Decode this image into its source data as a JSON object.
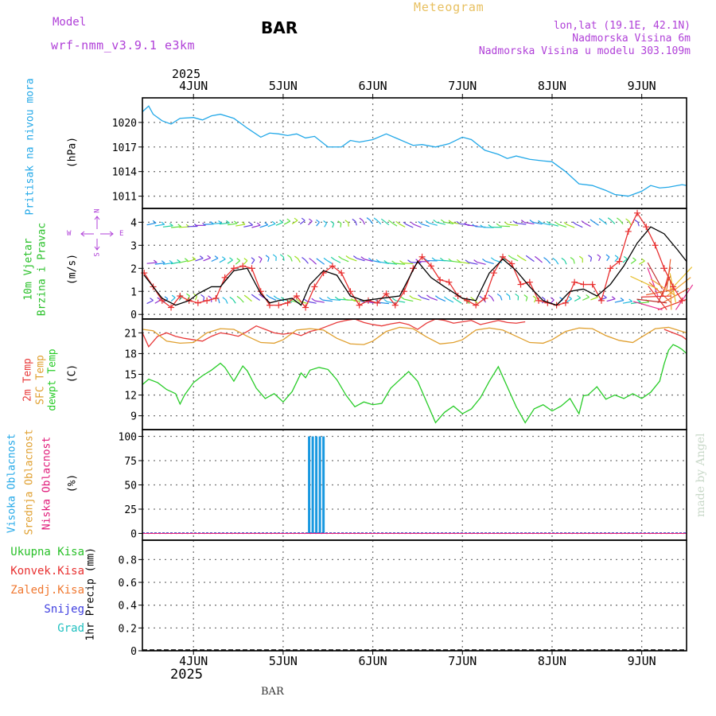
{
  "header": {
    "model_label": "Model",
    "model_name": "wrf-nmm_v3.9.1 e3km",
    "station": "BAR",
    "title": "Meteogram",
    "lonlat": "lon,lat (19.1E, 42.1N)",
    "elevation": "Nadmorska Visina 6m",
    "model_elevation": "Nadmorska Visina u modelu 303.109m",
    "footer_station": "BAR",
    "credit": "made by Angel",
    "colors": {
      "model": "#b040d8",
      "title": "#e8c060"
    }
  },
  "time_axis": {
    "year": "2025",
    "ticks": [
      {
        "label": "4JUN",
        "day": 0
      },
      {
        "label": "5JUN",
        "day": 1
      },
      {
        "label": "6JUN",
        "day": 2
      },
      {
        "label": "7JUN",
        "day": 3
      },
      {
        "label": "8JUN",
        "day": 4
      },
      {
        "label": "9JUN",
        "day": 5
      }
    ],
    "range_days": [
      -0.57,
      5.5
    ]
  },
  "chart_data": [
    {
      "type": "line",
      "panel": "pressure",
      "ylabel": "Pritisak na nivou mora",
      "unit": "(hPa)",
      "ylim": [
        1009.5,
        1023.0
      ],
      "yticks": [
        1011,
        1014,
        1017,
        1020
      ],
      "series": [
        {
          "name": "MSLP",
          "color": "#22a8e8",
          "x": [
            -0.57,
            -0.5,
            -0.45,
            -0.35,
            -0.25,
            -0.15,
            0,
            0.1,
            0.2,
            0.3,
            0.45,
            0.6,
            0.75,
            0.85,
            0.95,
            1.05,
            1.15,
            1.25,
            1.35,
            1.5,
            1.65,
            1.75,
            1.85,
            2.0,
            2.15,
            2.3,
            2.45,
            2.55,
            2.7,
            2.85,
            3.0,
            3.1,
            3.25,
            3.4,
            3.5,
            3.6,
            3.75,
            3.9,
            4.0,
            4.15,
            4.3,
            4.45,
            4.6,
            4.7,
            4.85,
            5.0,
            5.1,
            5.2,
            5.3,
            5.45,
            5.5
          ],
          "values": [
            1021.3,
            1022.0,
            1021.0,
            1020.2,
            1019.8,
            1020.5,
            1020.6,
            1020.3,
            1020.8,
            1021.0,
            1020.5,
            1019.3,
            1018.2,
            1018.7,
            1018.6,
            1018.4,
            1018.6,
            1018.1,
            1018.3,
            1017.0,
            1017.0,
            1017.8,
            1017.6,
            1017.9,
            1018.6,
            1017.9,
            1017.2,
            1017.3,
            1017.0,
            1017.4,
            1018.2,
            1017.9,
            1016.6,
            1016.1,
            1015.6,
            1015.9,
            1015.5,
            1015.3,
            1015.2,
            1014.0,
            1012.5,
            1012.3,
            1011.7,
            1011.2,
            1011.0,
            1011.6,
            1012.3,
            1012.0,
            1012.1,
            1012.4,
            1012.3
          ]
        }
      ]
    },
    {
      "type": "line",
      "panel": "wind",
      "ylabel": "10m Vjetar Brzina i Pravac",
      "unit": "(m/s)",
      "compass": {
        "n": "N",
        "s": "S",
        "e": "E",
        "w": "W"
      },
      "ylim": [
        -0.2,
        4.6
      ],
      "yticks": [
        0,
        1,
        2,
        3,
        4
      ],
      "series": [
        {
          "name": "Brzina",
          "color": "#e83030",
          "x": [
            -0.55,
            -0.45,
            -0.35,
            -0.25,
            -0.15,
            -0.05,
            0.05,
            0.15,
            0.25,
            0.35,
            0.45,
            0.55,
            0.65,
            0.75,
            0.85,
            0.95,
            1.05,
            1.15,
            1.25,
            1.35,
            1.45,
            1.55,
            1.65,
            1.75,
            1.85,
            1.95,
            2.05,
            2.15,
            2.25,
            2.35,
            2.45,
            2.55,
            2.65,
            2.75,
            2.85,
            2.95,
            3.05,
            3.15,
            3.25,
            3.35,
            3.45,
            3.55,
            3.65,
            3.75,
            3.85,
            3.95,
            4.05,
            4.15,
            4.25,
            4.35,
            4.45,
            4.55,
            4.65,
            4.75,
            4.85,
            4.95,
            5.05,
            5.15,
            5.25,
            5.35,
            5.45
          ],
          "values": [
            1.8,
            1.2,
            0.6,
            0.3,
            0.8,
            0.6,
            0.5,
            0.6,
            0.7,
            1.6,
            2.0,
            2.1,
            2.0,
            1.0,
            0.4,
            0.4,
            0.5,
            0.8,
            0.3,
            1.2,
            1.8,
            2.1,
            1.8,
            1.0,
            0.4,
            0.6,
            0.5,
            0.9,
            0.4,
            1.0,
            2.0,
            2.5,
            2.1,
            1.5,
            1.4,
            0.8,
            0.6,
            0.4,
            0.7,
            1.8,
            2.5,
            2.2,
            1.3,
            1.4,
            0.6,
            0.5,
            0.4,
            0.5,
            1.4,
            1.3,
            1.3,
            0.6,
            2.0,
            2.3,
            3.6,
            4.4,
            3.8,
            3.0,
            2.0,
            1.2,
            0.6
          ]
        },
        {
          "name": "Model",
          "color": "#000000",
          "x": [
            -0.55,
            -0.35,
            -0.2,
            -0.05,
            0.05,
            0.2,
            0.3,
            0.45,
            0.6,
            0.75,
            0.85,
            0.95,
            1.1,
            1.2,
            1.3,
            1.45,
            1.6,
            1.75,
            1.9,
            2.1,
            2.3,
            2.5,
            2.65,
            2.8,
            3.0,
            3.15,
            3.3,
            3.45,
            3.6,
            3.75,
            3.9,
            4.05,
            4.2,
            4.35,
            4.5,
            4.65,
            4.8,
            4.95,
            5.1,
            5.25,
            5.4,
            5.5
          ],
          "values": [
            1.7,
            0.7,
            0.4,
            0.6,
            0.9,
            1.2,
            1.2,
            1.9,
            2.0,
            0.9,
            0.5,
            0.6,
            0.7,
            0.4,
            1.3,
            1.9,
            1.7,
            0.8,
            0.6,
            0.7,
            0.8,
            2.3,
            1.6,
            1.2,
            0.7,
            0.6,
            1.8,
            2.4,
            1.9,
            1.2,
            0.6,
            0.4,
            1.0,
            1.1,
            0.8,
            1.3,
            2.1,
            3.1,
            3.8,
            3.5,
            2.8,
            2.3
          ]
        }
      ],
      "arrow_rows": [
        3.85,
        2.25,
        0.55
      ]
    },
    {
      "type": "line",
      "panel": "temperature",
      "ylabel": [
        "2m Temp",
        "SFC Temp",
        "dewpt Temp"
      ],
      "unit": "(C)",
      "ylim": [
        7.0,
        23.0
      ],
      "yticks": [
        9,
        12,
        15,
        18,
        21
      ],
      "series": [
        {
          "name": "2m Temp",
          "color": "#e83a3a",
          "x": [
            -0.57,
            -0.5,
            -0.4,
            -0.3,
            -0.2,
            -0.1,
            0,
            0.1,
            0.2,
            0.3,
            0.4,
            0.5,
            0.6,
            0.7,
            0.8,
            0.9,
            1.0,
            1.1,
            1.2,
            1.3,
            1.4,
            1.5,
            1.6,
            1.7,
            1.8,
            1.9,
            2.0,
            2.1,
            2.2,
            2.3,
            2.4,
            2.5,
            2.6,
            2.7,
            2.8,
            2.9,
            3.0,
            3.1,
            3.2,
            3.3,
            3.4,
            3.5,
            3.6,
            3.7
          ],
          "values": [
            21.0,
            19.0,
            20.5,
            21.0,
            20.5,
            20.2,
            20.0,
            19.8,
            20.5,
            21.0,
            20.8,
            20.5,
            21.2,
            22.0,
            21.5,
            21.0,
            20.8,
            21.0,
            20.6,
            21.2,
            21.5,
            22.0,
            22.5,
            22.8,
            23.0,
            22.5,
            22.2,
            22.0,
            22.3,
            22.5,
            22.2,
            21.5,
            22.4,
            23.0,
            22.8,
            22.4,
            22.6,
            22.8,
            22.2,
            22.5,
            22.8,
            22.5,
            22.4,
            22.6
          ]
        },
        {
          "name": "2m Temp tail",
          "color": "#e83a3a",
          "x": [
            5.25,
            5.35,
            5.45,
            5.5
          ],
          "values": [
            21.5,
            21.0,
            20.5,
            20.0
          ]
        },
        {
          "name": "SFC Temp",
          "color": "#e0a030",
          "x": [
            -0.57,
            -0.45,
            -0.3,
            -0.15,
            0,
            0.15,
            0.3,
            0.45,
            0.6,
            0.75,
            0.9,
            1.0,
            1.15,
            1.3,
            1.45,
            1.6,
            1.75,
            1.9,
            2.0,
            2.15,
            2.3,
            2.45,
            2.6,
            2.75,
            2.9,
            3.0,
            3.15,
            3.3,
            3.45,
            3.6,
            3.75,
            3.9,
            4.0,
            4.15,
            4.3,
            4.45,
            4.6,
            4.75,
            4.9,
            5.0,
            5.15,
            5.3,
            5.45,
            5.5
          ],
          "values": [
            21.5,
            21.3,
            19.8,
            19.5,
            19.6,
            21.0,
            21.6,
            21.5,
            20.5,
            19.6,
            19.5,
            20.0,
            21.4,
            21.6,
            21.4,
            20.2,
            19.4,
            19.3,
            19.8,
            21.2,
            21.8,
            21.6,
            20.4,
            19.4,
            19.6,
            20.0,
            21.4,
            21.7,
            21.4,
            20.5,
            19.6,
            19.5,
            20.0,
            21.2,
            21.7,
            21.6,
            20.6,
            19.9,
            19.6,
            20.4,
            21.6,
            21.8,
            21.2,
            21.0
          ]
        },
        {
          "name": "dewpt Temp",
          "color": "#28cc28",
          "x": [
            -0.57,
            -0.5,
            -0.4,
            -0.3,
            -0.2,
            -0.15,
            -0.1,
            0,
            0.1,
            0.2,
            0.3,
            0.35,
            0.45,
            0.55,
            0.6,
            0.7,
            0.8,
            0.9,
            1.0,
            1.1,
            1.2,
            1.25,
            1.3,
            1.4,
            1.5,
            1.6,
            1.7,
            1.8,
            1.9,
            2.0,
            2.1,
            2.2,
            2.3,
            2.4,
            2.5,
            2.6,
            2.7,
            2.8,
            2.9,
            3.0,
            3.1,
            3.2,
            3.3,
            3.4,
            3.5,
            3.6,
            3.7,
            3.8,
            3.9,
            4.0,
            4.1,
            4.2,
            4.3,
            4.35,
            4.4,
            4.5,
            4.6,
            4.7,
            4.8,
            4.9,
            5.0,
            5.1,
            5.2,
            5.25,
            5.3,
            5.35,
            5.4,
            5.45,
            5.5
          ],
          "values": [
            13.5,
            14.3,
            13.8,
            12.8,
            12.2,
            10.7,
            12.0,
            13.8,
            14.8,
            15.6,
            16.6,
            16.0,
            14.0,
            16.2,
            15.5,
            13.0,
            11.5,
            12.2,
            11.0,
            12.5,
            15.2,
            14.5,
            15.6,
            16.0,
            15.7,
            14.2,
            12.0,
            10.3,
            11.0,
            10.6,
            10.8,
            13.0,
            14.2,
            15.4,
            14.0,
            11.0,
            8.0,
            9.5,
            10.4,
            9.3,
            10.0,
            11.6,
            14.0,
            16.1,
            13.2,
            10.3,
            8.0,
            10.0,
            10.6,
            9.7,
            10.4,
            11.5,
            9.3,
            11.9,
            12.0,
            13.2,
            11.4,
            12.0,
            11.5,
            12.2,
            11.5,
            12.4,
            14.0,
            16.5,
            18.5,
            19.3,
            19.0,
            18.6,
            18.0
          ]
        }
      ]
    },
    {
      "type": "bar",
      "panel": "clouds",
      "ylabel": [
        "Visoka Oblacnost",
        "Srednja Oblacnost",
        "Niska Oblacnost"
      ],
      "unit": "(%)",
      "ylim": [
        -7,
        107
      ],
      "yticks": [
        0,
        25,
        50,
        75,
        100
      ],
      "series": [
        {
          "name": "Visoka Oblacnost",
          "color": "#1898e0",
          "x": [
            1.29,
            1.33,
            1.37,
            1.41,
            1.45
          ],
          "values": [
            100,
            100,
            100,
            100,
            100
          ]
        }
      ],
      "colors": {
        "srednja": "#e0a030",
        "niska": "#e01878"
      }
    },
    {
      "type": "bar",
      "panel": "precip",
      "ylabel": "1hr Precip",
      "unit": "(mm)",
      "ylim": [
        0.0,
        0.97
      ],
      "yticks": [
        0,
        0.2,
        0.4,
        0.6,
        0.8
      ],
      "ytick_labels": [
        "0",
        "0.2",
        "0.4",
        "0.6",
        "0.8"
      ],
      "legend": [
        {
          "label": "Ukupna Kisa",
          "color": "#28c028"
        },
        {
          "label": "Konvek.Kisa",
          "color": "#e83030"
        },
        {
          "label": "Zaledj.Kisa",
          "color": "#f07830"
        },
        {
          "label": "Snijeg",
          "color": "#4040e0"
        },
        {
          "label": "Grad",
          "color": "#20c0c0"
        }
      ],
      "series": []
    }
  ]
}
